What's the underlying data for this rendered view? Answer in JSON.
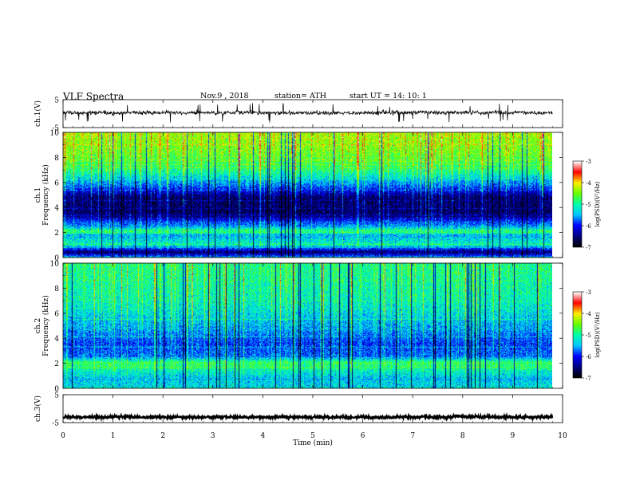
{
  "header": {
    "title": "VLF Spectra",
    "date": "Nov.9 , 2018",
    "station": "station= ATH",
    "start_ut": "start UT = 14: 10: 1"
  },
  "colors": {
    "background": "#ffffff",
    "frame": "#000000",
    "colormap_stops": [
      "#000000",
      "#000080",
      "#0000ff",
      "#00c8ff",
      "#00ffaa",
      "#66ff00",
      "#ffee00",
      "#ff0000",
      "#ffffff"
    ]
  },
  "chart_data": [
    {
      "type": "line",
      "panel": "ch1-waveform",
      "ylabel": "ch.1(V)",
      "yticks": [
        "5",
        "-5"
      ],
      "ylim": [
        -5,
        5
      ],
      "x_range_min": [
        0,
        9.8
      ],
      "series": [
        {
          "baseline_v": 0.3,
          "noise_v": 0.6,
          "spike_v": 3.5
        }
      ]
    },
    {
      "type": "heatmap",
      "panel": "ch1-spectrogram",
      "ylabel": "ch.1",
      "ylabel2": "Frequency (kHz)",
      "yticks": [
        "0",
        "2",
        "4",
        "6",
        "8",
        "10"
      ],
      "ylim_khz": [
        0,
        10
      ],
      "x_range_min": [
        0,
        9.8
      ],
      "colorbar": {
        "label": "log(PSD)(V²/Hz)",
        "ticks": [
          "-3",
          "-4",
          "-5",
          "-6",
          "-7"
        ],
        "range": [
          -7,
          -3
        ]
      },
      "log_psd_profile": [
        {
          "f_khz": 0.0,
          "level": -5.6
        },
        {
          "f_khz": 0.4,
          "level": -6.6
        },
        {
          "f_khz": 1.0,
          "level": -5.1
        },
        {
          "f_khz": 1.8,
          "level": -5.5
        },
        {
          "f_khz": 2.0,
          "level": -4.8
        },
        {
          "f_khz": 2.5,
          "level": -5.6
        },
        {
          "f_khz": 3.0,
          "level": -6.1
        },
        {
          "f_khz": 3.5,
          "level": -6.6
        },
        {
          "f_khz": 4.8,
          "level": -6.6
        },
        {
          "f_khz": 5.8,
          "level": -5.7
        },
        {
          "f_khz": 7.0,
          "level": -4.9
        },
        {
          "f_khz": 8.5,
          "level": -4.5
        },
        {
          "f_khz": 10.0,
          "level": -4.3
        }
      ]
    },
    {
      "type": "heatmap",
      "panel": "ch2-spectrogram",
      "ylabel": "ch.2",
      "ylabel2": "Frequency (kHz)",
      "yticks": [
        "0",
        "2",
        "4",
        "6",
        "8",
        "10"
      ],
      "ylim_khz": [
        0,
        10
      ],
      "x_range_min": [
        0,
        9.8
      ],
      "colorbar": {
        "label": "log(PSD)(V²/Hz)",
        "ticks": [
          "-3",
          "-4",
          "-5",
          "-6",
          "-7"
        ],
        "range": [
          -7,
          -3
        ]
      },
      "log_psd_profile": [
        {
          "f_khz": 0.0,
          "level": -5.3
        },
        {
          "f_khz": 0.8,
          "level": -5.4
        },
        {
          "f_khz": 1.6,
          "level": -5.0
        },
        {
          "f_khz": 2.0,
          "level": -4.7
        },
        {
          "f_khz": 2.5,
          "level": -5.7
        },
        {
          "f_khz": 3.5,
          "level": -5.9
        },
        {
          "f_khz": 5.0,
          "level": -5.5
        },
        {
          "f_khz": 7.0,
          "level": -5.1
        },
        {
          "f_khz": 10.0,
          "level": -4.9
        }
      ]
    },
    {
      "type": "line",
      "panel": "ch3-waveform",
      "ylabel": "ch.3(V)",
      "yticks": [
        "5",
        "-5"
      ],
      "ylim": [
        -5,
        5
      ],
      "x_range_min": [
        0,
        9.8
      ],
      "series": [
        {
          "baseline_v": -3.0,
          "noise_v": 0.4
        }
      ],
      "xlabel": "Time (min)",
      "xticks": [
        "0",
        "1",
        "2",
        "3",
        "4",
        "5",
        "6",
        "7",
        "8",
        "9",
        "10"
      ],
      "xlim": [
        0,
        10
      ]
    }
  ]
}
